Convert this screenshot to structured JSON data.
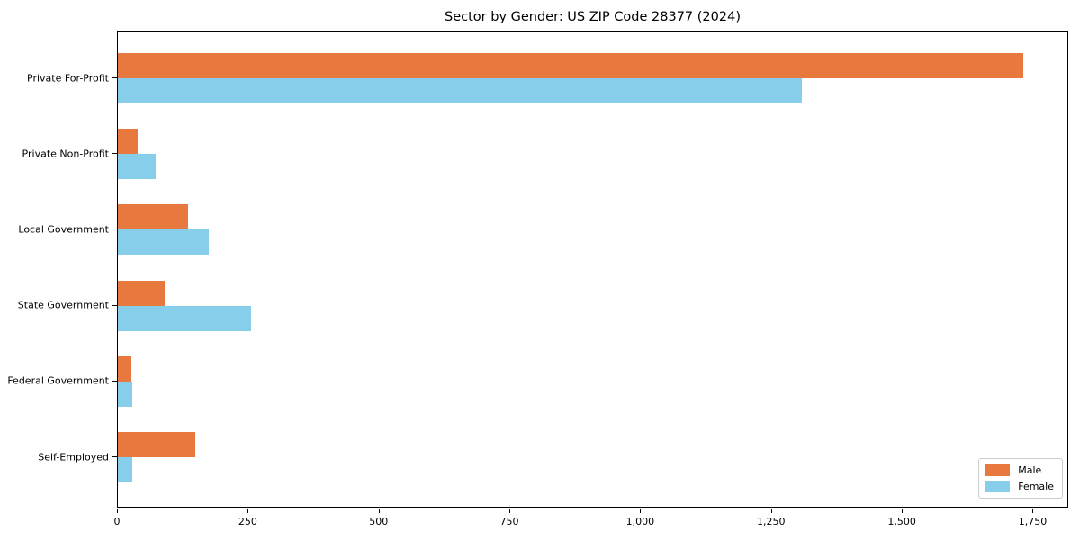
{
  "title": "Sector by Gender: US ZIP Code 28377 (2024)",
  "chart_data": {
    "type": "bar",
    "orientation": "horizontal",
    "title": "Sector by Gender: US ZIP Code 28377 (2024)",
    "categories": [
      "Private For-Profit",
      "Private Non-Profit",
      "Local Government",
      "State Government",
      "Federal Government",
      "Self-Employed"
    ],
    "series": [
      {
        "name": "Male",
        "color": "#e8793e",
        "values": [
          1730,
          37,
          135,
          89,
          25,
          148
        ]
      },
      {
        "name": "Female",
        "color": "#87ceeb",
        "values": [
          1307,
          72,
          174,
          255,
          28,
          28
        ]
      }
    ],
    "xlabel": "",
    "ylabel": "",
    "xlim": [
      0,
      1818
    ],
    "xticks": [
      0,
      250,
      500,
      750,
      1000,
      1250,
      1500,
      1750
    ],
    "xtick_labels": [
      "0",
      "250",
      "500",
      "750",
      "1,000",
      "1,250",
      "1,500",
      "1,750"
    ],
    "grid": false,
    "legend_position": "lower right",
    "legend_entries": [
      "Male",
      "Female"
    ]
  }
}
